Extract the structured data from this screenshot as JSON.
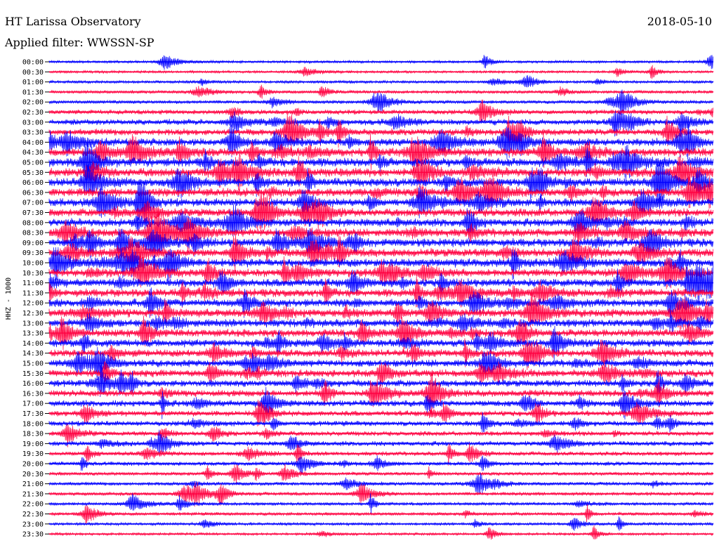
{
  "header": {
    "station": "HT Larissa Observatory",
    "date": "2018-05-10",
    "filter_label": "Applied filter: WWSSN-SP"
  },
  "chart_data": {
    "type": "line",
    "ylabel": "HHZ - 1000",
    "row_labels": [
      "00:00",
      "00:30",
      "01:00",
      "01:30",
      "02:00",
      "02:30",
      "03:00",
      "03:30",
      "04:00",
      "04:30",
      "05:00",
      "05:30",
      "06:00",
      "06:30",
      "07:00",
      "07:30",
      "08:00",
      "08:30",
      "09:00",
      "09:30",
      "10:00",
      "10:30",
      "11:00",
      "11:30",
      "12:00",
      "12:30",
      "13:00",
      "13:30",
      "14:00",
      "14:30",
      "15:00",
      "15:30",
      "16:00",
      "16:30",
      "17:00",
      "17:30",
      "18:00",
      "18:30",
      "19:00",
      "19:30",
      "20:00",
      "20:30",
      "21:00",
      "21:30",
      "22:00",
      "22:30",
      "23:00",
      "23:30"
    ],
    "row_activity": [
      0.15,
      0.15,
      0.2,
      0.25,
      0.3,
      0.45,
      0.6,
      0.7,
      0.85,
      0.95,
      1.0,
      1.0,
      0.95,
      0.95,
      0.9,
      0.9,
      0.9,
      0.9,
      0.95,
      0.95,
      0.95,
      0.9,
      0.9,
      0.9,
      0.9,
      0.95,
      0.9,
      0.85,
      0.85,
      0.8,
      0.8,
      0.8,
      0.75,
      0.7,
      0.65,
      0.55,
      0.5,
      0.45,
      0.45,
      0.4,
      0.35,
      0.3,
      0.3,
      0.3,
      0.25,
      0.25,
      0.2,
      0.15
    ],
    "series_colors": [
      "#0000ff",
      "#ff0040"
    ]
  }
}
